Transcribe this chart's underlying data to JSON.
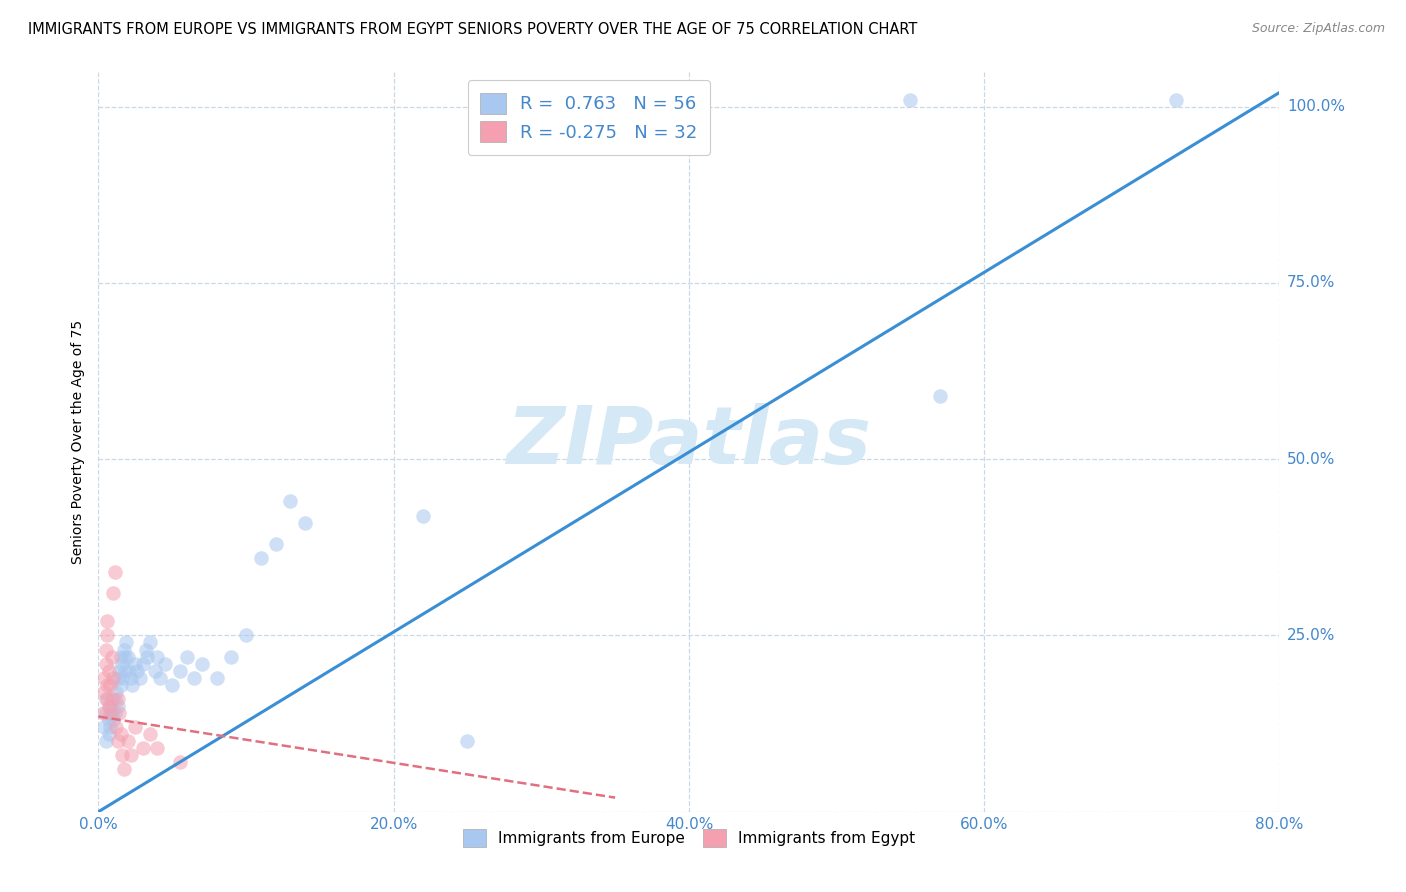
{
  "title": "IMMIGRANTS FROM EUROPE VS IMMIGRANTS FROM EGYPT SENIORS POVERTY OVER THE AGE OF 75 CORRELATION CHART",
  "source": "Source: ZipAtlas.com",
  "xlim": [
    0.0,
    0.8
  ],
  "ylim": [
    0.0,
    1.05
  ],
  "ylabel": "Seniors Poverty Over the Age of 75",
  "legend_entries": [
    {
      "label": "Immigrants from Europe",
      "color": "#a8c8f0",
      "R": "0.763",
      "N": "56"
    },
    {
      "label": "Immigrants from Egypt",
      "color": "#f4a0b0",
      "R": "-0.275",
      "N": "32"
    }
  ],
  "blue_line": {
    "x0": 0.0,
    "y0": 0.0,
    "x1": 0.8,
    "y1": 1.02
  },
  "pink_line": {
    "x0": 0.0,
    "y0": 0.135,
    "x1": 0.35,
    "y1": 0.02
  },
  "watermark": "ZIPatlas",
  "blue_scatter": [
    [
      0.004,
      0.12
    ],
    [
      0.005,
      0.14
    ],
    [
      0.005,
      0.1
    ],
    [
      0.006,
      0.16
    ],
    [
      0.007,
      0.13
    ],
    [
      0.007,
      0.11
    ],
    [
      0.008,
      0.15
    ],
    [
      0.008,
      0.12
    ],
    [
      0.009,
      0.14
    ],
    [
      0.01,
      0.13
    ],
    [
      0.011,
      0.16
    ],
    [
      0.011,
      0.14
    ],
    [
      0.012,
      0.17
    ],
    [
      0.013,
      0.15
    ],
    [
      0.013,
      0.19
    ],
    [
      0.014,
      0.2
    ],
    [
      0.015,
      0.22
    ],
    [
      0.015,
      0.18
    ],
    [
      0.016,
      0.21
    ],
    [
      0.016,
      0.19
    ],
    [
      0.017,
      0.23
    ],
    [
      0.018,
      0.22
    ],
    [
      0.018,
      0.2
    ],
    [
      0.019,
      0.24
    ],
    [
      0.02,
      0.22
    ],
    [
      0.021,
      0.2
    ],
    [
      0.022,
      0.19
    ],
    [
      0.023,
      0.18
    ],
    [
      0.025,
      0.21
    ],
    [
      0.026,
      0.2
    ],
    [
      0.028,
      0.19
    ],
    [
      0.03,
      0.21
    ],
    [
      0.032,
      0.23
    ],
    [
      0.033,
      0.22
    ],
    [
      0.035,
      0.24
    ],
    [
      0.038,
      0.2
    ],
    [
      0.04,
      0.22
    ],
    [
      0.042,
      0.19
    ],
    [
      0.045,
      0.21
    ],
    [
      0.05,
      0.18
    ],
    [
      0.055,
      0.2
    ],
    [
      0.06,
      0.22
    ],
    [
      0.065,
      0.19
    ],
    [
      0.07,
      0.21
    ],
    [
      0.08,
      0.19
    ],
    [
      0.09,
      0.22
    ],
    [
      0.1,
      0.25
    ],
    [
      0.11,
      0.36
    ],
    [
      0.12,
      0.38
    ],
    [
      0.13,
      0.44
    ],
    [
      0.14,
      0.41
    ],
    [
      0.22,
      0.42
    ],
    [
      0.25,
      0.1
    ],
    [
      0.55,
      1.01
    ],
    [
      0.73,
      1.01
    ],
    [
      0.57,
      0.59
    ]
  ],
  "pink_scatter": [
    [
      0.003,
      0.14
    ],
    [
      0.004,
      0.17
    ],
    [
      0.004,
      0.19
    ],
    [
      0.005,
      0.21
    ],
    [
      0.005,
      0.16
    ],
    [
      0.005,
      0.23
    ],
    [
      0.006,
      0.18
    ],
    [
      0.006,
      0.25
    ],
    [
      0.006,
      0.27
    ],
    [
      0.007,
      0.15
    ],
    [
      0.007,
      0.2
    ],
    [
      0.008,
      0.14
    ],
    [
      0.008,
      0.18
    ],
    [
      0.009,
      0.16
    ],
    [
      0.009,
      0.22
    ],
    [
      0.01,
      0.31
    ],
    [
      0.01,
      0.19
    ],
    [
      0.011,
      0.34
    ],
    [
      0.012,
      0.12
    ],
    [
      0.013,
      0.1
    ],
    [
      0.013,
      0.16
    ],
    [
      0.014,
      0.14
    ],
    [
      0.015,
      0.11
    ],
    [
      0.016,
      0.08
    ],
    [
      0.017,
      0.06
    ],
    [
      0.02,
      0.1
    ],
    [
      0.022,
      0.08
    ],
    [
      0.025,
      0.12
    ],
    [
      0.03,
      0.09
    ],
    [
      0.035,
      0.11
    ],
    [
      0.04,
      0.09
    ],
    [
      0.055,
      0.07
    ]
  ],
  "dot_size": 110,
  "dot_alpha": 0.55,
  "line_color_blue": "#3a8fd4",
  "line_color_pink": "#e07080",
  "grid_color": "#c8d8e8",
  "background_color": "#ffffff",
  "title_fontsize": 10.5,
  "axis_label_fontsize": 10,
  "tick_fontsize": 11,
  "tick_color": "#4488cc",
  "watermark_color": "#d4e8f5",
  "watermark_fontsize": 58,
  "ytick_vals": [
    0.0,
    0.25,
    0.5,
    0.75,
    1.0
  ],
  "ytick_labels": [
    "",
    "25.0%",
    "50.0%",
    "75.0%",
    "100.0%"
  ],
  "xtick_vals": [
    0.0,
    0.2,
    0.4,
    0.6,
    0.8
  ],
  "xtick_labels": [
    "0.0%",
    "20.0%",
    "40.0%",
    "60.0%",
    "80.0%"
  ]
}
